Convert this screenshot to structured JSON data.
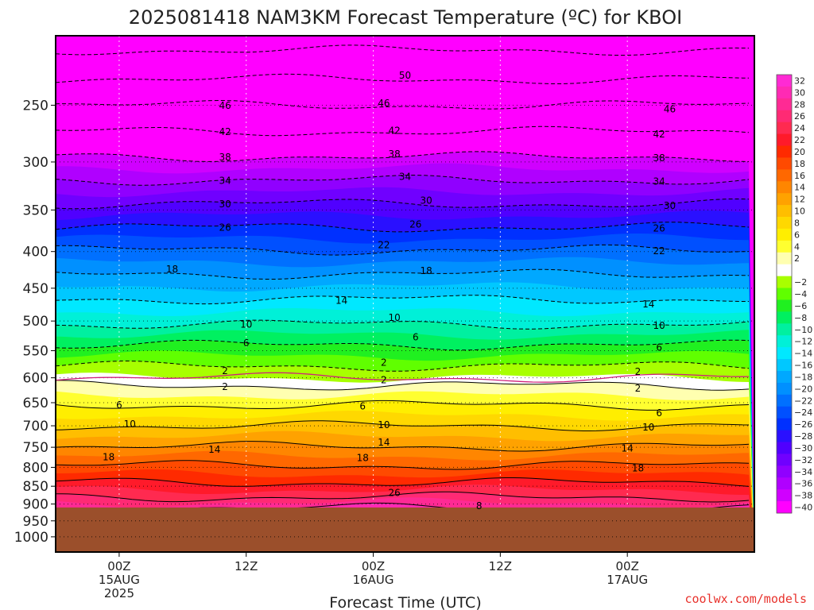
{
  "chart_data": {
    "type": "heatmap",
    "title": "2025081418 NAM3KM Forecast Temperature (ºC) for KBOI",
    "xlabel": "Forecast Time (UTC)",
    "ylabel": "",
    "y_scale": "log",
    "y_reversed": true,
    "ylim": [
      1050,
      200
    ],
    "y_ticks": [
      250,
      300,
      350,
      400,
      450,
      500,
      550,
      600,
      650,
      700,
      750,
      800,
      850,
      900,
      950,
      1000
    ],
    "xlim": [
      "2025-08-14T18:00Z",
      "2025-08-17T12:00Z"
    ],
    "x_ticks": [
      {
        "time": "2025-08-15T00:00Z",
        "lines": [
          "00Z",
          "15AUG",
          "2025"
        ]
      },
      {
        "time": "2025-08-15T12:00Z",
        "lines": [
          "12Z"
        ]
      },
      {
        "time": "2025-08-16T00:00Z",
        "lines": [
          "00Z",
          "16AUG"
        ]
      },
      {
        "time": "2025-08-16T12:00Z",
        "lines": [
          "12Z"
        ]
      },
      {
        "time": "2025-08-17T00:00Z",
        "lines": [
          "00Z",
          "17AUG"
        ]
      }
    ],
    "grid": true,
    "ground_below_hPa": 910,
    "ground_color": "#9b4f2b",
    "colorbar": {
      "placement": "right",
      "levels": [
        {
          "label": "32",
          "color": "#ff2ad4"
        },
        {
          "label": "30",
          "color": "#ff2ab4"
        },
        {
          "label": "28",
          "color": "#ff2a94"
        },
        {
          "label": "26",
          "color": "#ff2a74"
        },
        {
          "label": "24",
          "color": "#ff2a50"
        },
        {
          "label": "22",
          "color": "#ff1a2a"
        },
        {
          "label": "20",
          "color": "#ff2a00"
        },
        {
          "label": "18",
          "color": "#ff4a00"
        },
        {
          "label": "16",
          "color": "#ff6800"
        },
        {
          "label": "14",
          "color": "#ff8600"
        },
        {
          "label": "12",
          "color": "#ffa200"
        },
        {
          "label": "10",
          "color": "#ffbe00"
        },
        {
          "label": "8",
          "color": "#ffd800"
        },
        {
          "label": "6",
          "color": "#ffee00"
        },
        {
          "label": "4",
          "color": "#ffff30"
        },
        {
          "label": "2",
          "color": "#ffffb0"
        },
        {
          "label": "",
          "color": "#ffffff"
        },
        {
          "label": "−2",
          "color": "#a8ff00"
        },
        {
          "label": "−4",
          "color": "#60ff00"
        },
        {
          "label": "−6",
          "color": "#20f020"
        },
        {
          "label": "−8",
          "color": "#00f060"
        },
        {
          "label": "−10",
          "color": "#00f0a0"
        },
        {
          "label": "−12",
          "color": "#00f0d8"
        },
        {
          "label": "−14",
          "color": "#00e8ff"
        },
        {
          "label": "−16",
          "color": "#00c8ff"
        },
        {
          "label": "−18",
          "color": "#00a8ff"
        },
        {
          "label": "−20",
          "color": "#0090ff"
        },
        {
          "label": "−22",
          "color": "#0070ff"
        },
        {
          "label": "−24",
          "color": "#0050ff"
        },
        {
          "label": "−26",
          "color": "#0030ff"
        },
        {
          "label": "−28",
          "color": "#2a10ff"
        },
        {
          "label": "−30",
          "color": "#5000ff"
        },
        {
          "label": "−32",
          "color": "#7000ff"
        },
        {
          "label": "−34",
          "color": "#9000ff"
        },
        {
          "label": "−36",
          "color": "#b000ff"
        },
        {
          "label": "−38",
          "color": "#d000ff"
        },
        {
          "label": "−40",
          "color": "#ff00ff"
        }
      ]
    },
    "contour_profile": [
      {
        "p": 200,
        "t": -56
      },
      {
        "p": 230,
        "t": -50
      },
      {
        "p": 250,
        "t": -46
      },
      {
        "p": 272,
        "t": -42
      },
      {
        "p": 295,
        "t": -38
      },
      {
        "p": 318,
        "t": -34
      },
      {
        "p": 343,
        "t": -30
      },
      {
        "p": 370,
        "t": -26
      },
      {
        "p": 398,
        "t": -22
      },
      {
        "p": 430,
        "t": -18
      },
      {
        "p": 466,
        "t": -14
      },
      {
        "p": 505,
        "t": -10
      },
      {
        "p": 540,
        "t": -6
      },
      {
        "p": 578,
        "t": -2
      },
      {
        "p": 600,
        "t": 0
      },
      {
        "p": 615,
        "t": 2
      },
      {
        "p": 655,
        "t": 6
      },
      {
        "p": 700,
        "t": 10
      },
      {
        "p": 748,
        "t": 14
      },
      {
        "p": 795,
        "t": 18
      },
      {
        "p": 840,
        "t": 22
      },
      {
        "p": 880,
        "t": 26
      },
      {
        "p": 912,
        "t": 30
      }
    ],
    "contour_labels": [
      {
        "value": "50",
        "time": "2025-08-16T03:00Z",
        "p": 227
      },
      {
        "value": "46",
        "time": "2025-08-15T10:00Z",
        "p": 250
      },
      {
        "value": "46",
        "time": "2025-08-16T01:00Z",
        "p": 248
      },
      {
        "value": "46",
        "time": "2025-08-17T04:00Z",
        "p": 253
      },
      {
        "value": "42",
        "time": "2025-08-15T10:00Z",
        "p": 272
      },
      {
        "value": "42",
        "time": "2025-08-16T02:00Z",
        "p": 271
      },
      {
        "value": "42",
        "time": "2025-08-17T03:00Z",
        "p": 274
      },
      {
        "value": "38",
        "time": "2025-08-15T10:00Z",
        "p": 295
      },
      {
        "value": "38",
        "time": "2025-08-16T02:00Z",
        "p": 292
      },
      {
        "value": "38",
        "time": "2025-08-17T03:00Z",
        "p": 296
      },
      {
        "value": "34",
        "time": "2025-08-15T10:00Z",
        "p": 318
      },
      {
        "value": "34",
        "time": "2025-08-16T03:00Z",
        "p": 314
      },
      {
        "value": "34",
        "time": "2025-08-17T03:00Z",
        "p": 319
      },
      {
        "value": "30",
        "time": "2025-08-15T10:00Z",
        "p": 343
      },
      {
        "value": "30",
        "time": "2025-08-16T05:00Z",
        "p": 339
      },
      {
        "value": "30",
        "time": "2025-08-17T04:00Z",
        "p": 345
      },
      {
        "value": "26",
        "time": "2025-08-15T10:00Z",
        "p": 370
      },
      {
        "value": "26",
        "time": "2025-08-16T04:00Z",
        "p": 366
      },
      {
        "value": "26",
        "time": "2025-08-17T03:00Z",
        "p": 371
      },
      {
        "value": "22",
        "time": "2025-08-16T01:00Z",
        "p": 391
      },
      {
        "value": "22",
        "time": "2025-08-17T03:00Z",
        "p": 399
      },
      {
        "value": "18",
        "time": "2025-08-15T05:00Z",
        "p": 423
      },
      {
        "value": "18",
        "time": "2025-08-16T05:00Z",
        "p": 425
      },
      {
        "value": "14",
        "time": "2025-08-15T21:00Z",
        "p": 468
      },
      {
        "value": "14",
        "time": "2025-08-17T02:00Z",
        "p": 473
      },
      {
        "value": "10",
        "time": "2025-08-15T12:00Z",
        "p": 505
      },
      {
        "value": "10",
        "time": "2025-08-16T02:00Z",
        "p": 494
      },
      {
        "value": "10",
        "time": "2025-08-17T03:00Z",
        "p": 507
      },
      {
        "value": "6",
        "time": "2025-08-15T12:00Z",
        "p": 536
      },
      {
        "value": "6",
        "time": "2025-08-16T04:00Z",
        "p": 526
      },
      {
        "value": "6",
        "time": "2025-08-17T03:00Z",
        "p": 544
      },
      {
        "value": "2",
        "time": "2025-08-15T10:00Z",
        "p": 586
      },
      {
        "value": "2",
        "time": "2025-08-16T01:00Z",
        "p": 571
      },
      {
        "value": "2",
        "time": "2025-08-17T01:00Z",
        "p": 588
      },
      {
        "value": "2",
        "time": "2025-08-15T10:00Z",
        "p": 617
      },
      {
        "value": "2",
        "time": "2025-08-16T01:00Z",
        "p": 604
      },
      {
        "value": "2",
        "time": "2025-08-17T01:00Z",
        "p": 620
      },
      {
        "value": "6",
        "time": "2025-08-15T00:00Z",
        "p": 654
      },
      {
        "value": "6",
        "time": "2025-08-15T23:00Z",
        "p": 657
      },
      {
        "value": "6",
        "time": "2025-08-17T03:00Z",
        "p": 671
      },
      {
        "value": "10",
        "time": "2025-08-15T01:00Z",
        "p": 695
      },
      {
        "value": "10",
        "time": "2025-08-16T01:00Z",
        "p": 697
      },
      {
        "value": "10",
        "time": "2025-08-17T02:00Z",
        "p": 703
      },
      {
        "value": "14",
        "time": "2025-08-15T09:00Z",
        "p": 755
      },
      {
        "value": "14",
        "time": "2025-08-16T01:00Z",
        "p": 737
      },
      {
        "value": "14",
        "time": "2025-08-17T00:00Z",
        "p": 752
      },
      {
        "value": "18",
        "time": "2025-08-14T23:00Z",
        "p": 773
      },
      {
        "value": "18",
        "time": "2025-08-15T23:00Z",
        "p": 775
      },
      {
        "value": "18",
        "time": "2025-08-17T01:00Z",
        "p": 801
      },
      {
        "value": "26",
        "time": "2025-08-16T02:00Z",
        "p": 867
      },
      {
        "value": "8",
        "time": "2025-08-16T10:00Z",
        "p": 905
      }
    ]
  },
  "credit": "coolwx.com/models"
}
